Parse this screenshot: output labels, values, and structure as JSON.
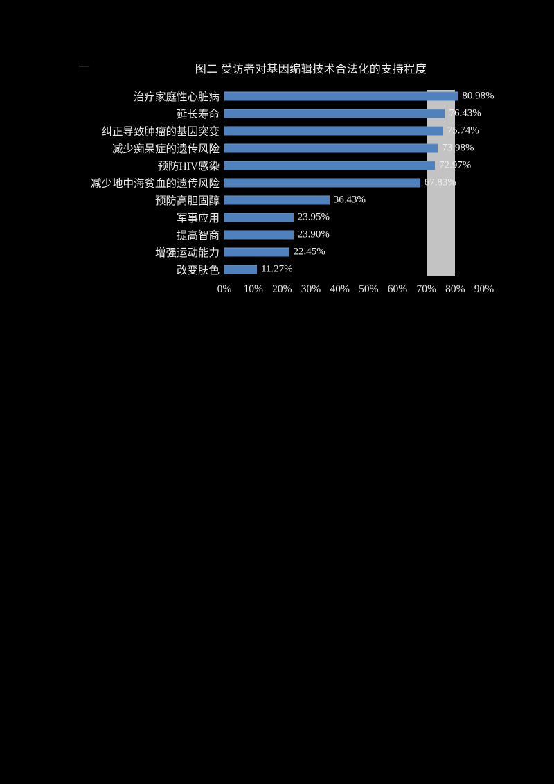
{
  "page": {
    "background_color": "#000000",
    "text_color": "#e9e9e9"
  },
  "chart": {
    "corner_mark": "—",
    "bar_color": "#4f81bd",
    "band_color": "#c3c3c3"
  },
  "chart_data": {
    "type": "bar",
    "orientation": "horizontal",
    "title": "图二 受访者对基因编辑技术合法化的支持程度",
    "categories": [
      "治疗家庭性心脏病",
      "延长寿命",
      "纠正导致肿瘤的基因突变",
      "减少痴呆症的遗传风险",
      "预防HIV感染",
      "减少地中海贫血的遗传风险",
      "预防高胆固醇",
      "军事应用",
      "提高智商",
      "增强运动能力",
      "改变肤色"
    ],
    "values": [
      80.98,
      76.43,
      75.74,
      73.98,
      72.97,
      67.83,
      36.43,
      23.95,
      23.9,
      22.45,
      11.27
    ],
    "value_labels": [
      "80.98%",
      "76.43%",
      "75.74%",
      "73.98%",
      "72.97%",
      "67.83%",
      "36.43%",
      "23.95%",
      "23.90%",
      "22.45%",
      "11.27%"
    ],
    "x_ticks": [
      "0%",
      "10%",
      "20%",
      "30%",
      "40%",
      "50%",
      "60%",
      "70%",
      "80%",
      "90%"
    ],
    "xlabel": "",
    "ylabel": "",
    "xlim": [
      0,
      90
    ],
    "grid": false,
    "legend": "none",
    "highlight_band": {
      "from": 70,
      "to": 80
    }
  }
}
